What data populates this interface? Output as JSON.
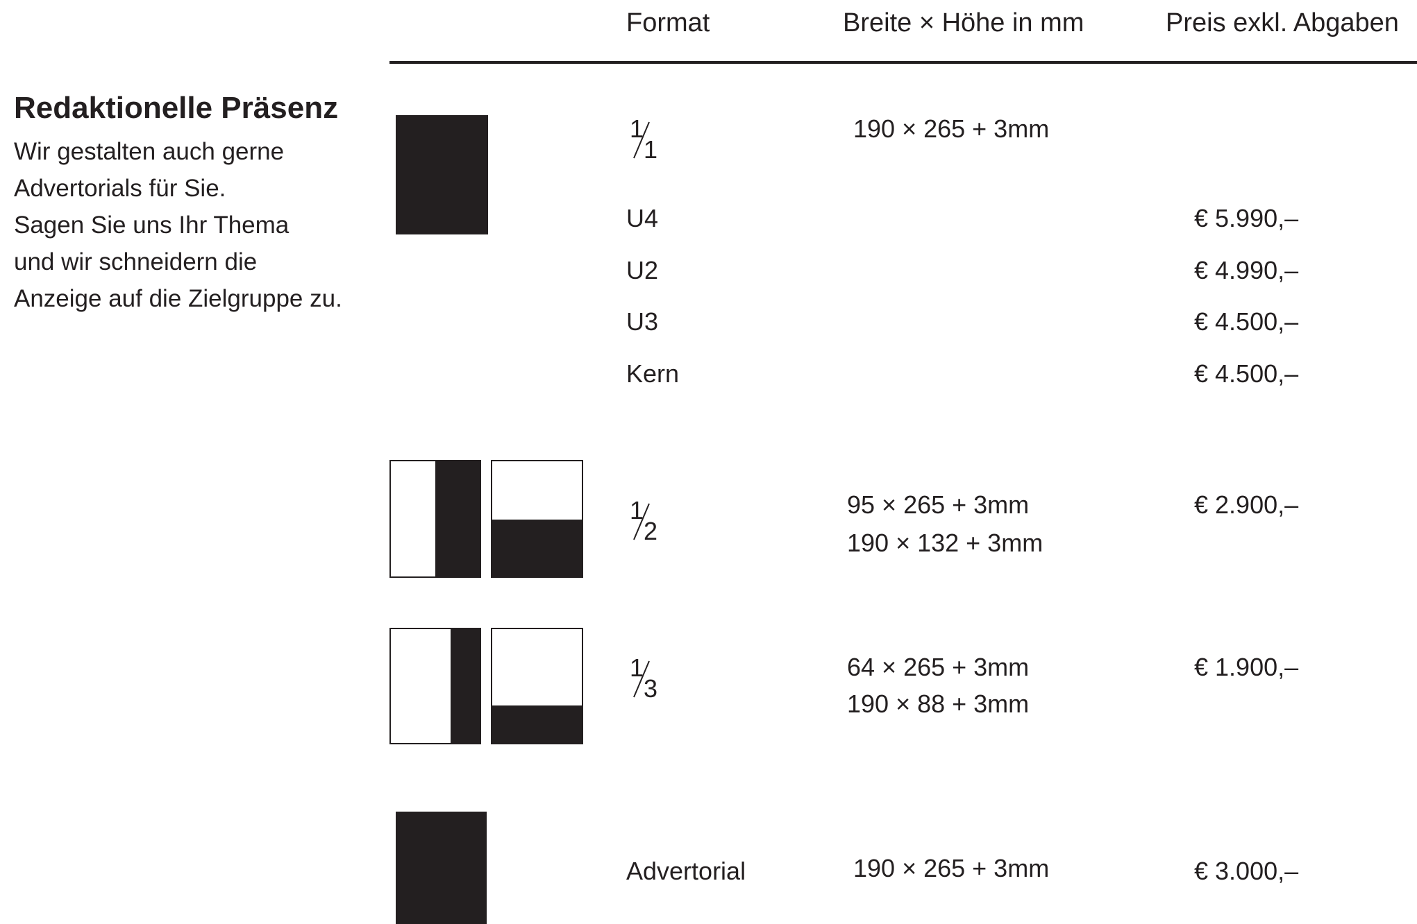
{
  "header": {
    "format": "Format",
    "dimensions": "Breite × Höhe in mm",
    "price": "Preis exkl. Abgaben"
  },
  "sidebar": {
    "title": "Redaktionelle Präsenz",
    "lines": [
      "Wir gestalten auch gerne",
      "Advertorials für Sie.",
      "Sagen Sie uns Ihr Thema",
      "und wir schneidern die",
      "Anzeige auf die Zielgruppe zu."
    ]
  },
  "rows": {
    "full_page": {
      "fraction": {
        "num": "1",
        "den": "1"
      },
      "size": "190 × 265 + 3mm",
      "options": [
        {
          "label": "U4",
          "price": "€ 5.990,–"
        },
        {
          "label": "U2",
          "price": "€ 4.990,–"
        },
        {
          "label": "U3",
          "price": "€ 4.500,–"
        },
        {
          "label": "Kern",
          "price": "€ 4.500,–"
        }
      ]
    },
    "half_page": {
      "fraction": {
        "num": "1",
        "den": "2"
      },
      "size_1": "95 × 265 + 3mm",
      "size_2": "190 × 132 + 3mm",
      "price": "€ 2.900,–"
    },
    "third_page": {
      "fraction": {
        "num": "1",
        "den": "3"
      },
      "size_1": "64 × 265 + 3mm",
      "size_2": "190 × 88 + 3mm",
      "price": "€ 1.900,–"
    },
    "advertorial": {
      "label": "Advertorial",
      "size": "190 × 265 + 3mm",
      "price": "€ 3.000,–"
    }
  },
  "colors": {
    "ink": "#231f20",
    "paper": "#ffffff"
  }
}
